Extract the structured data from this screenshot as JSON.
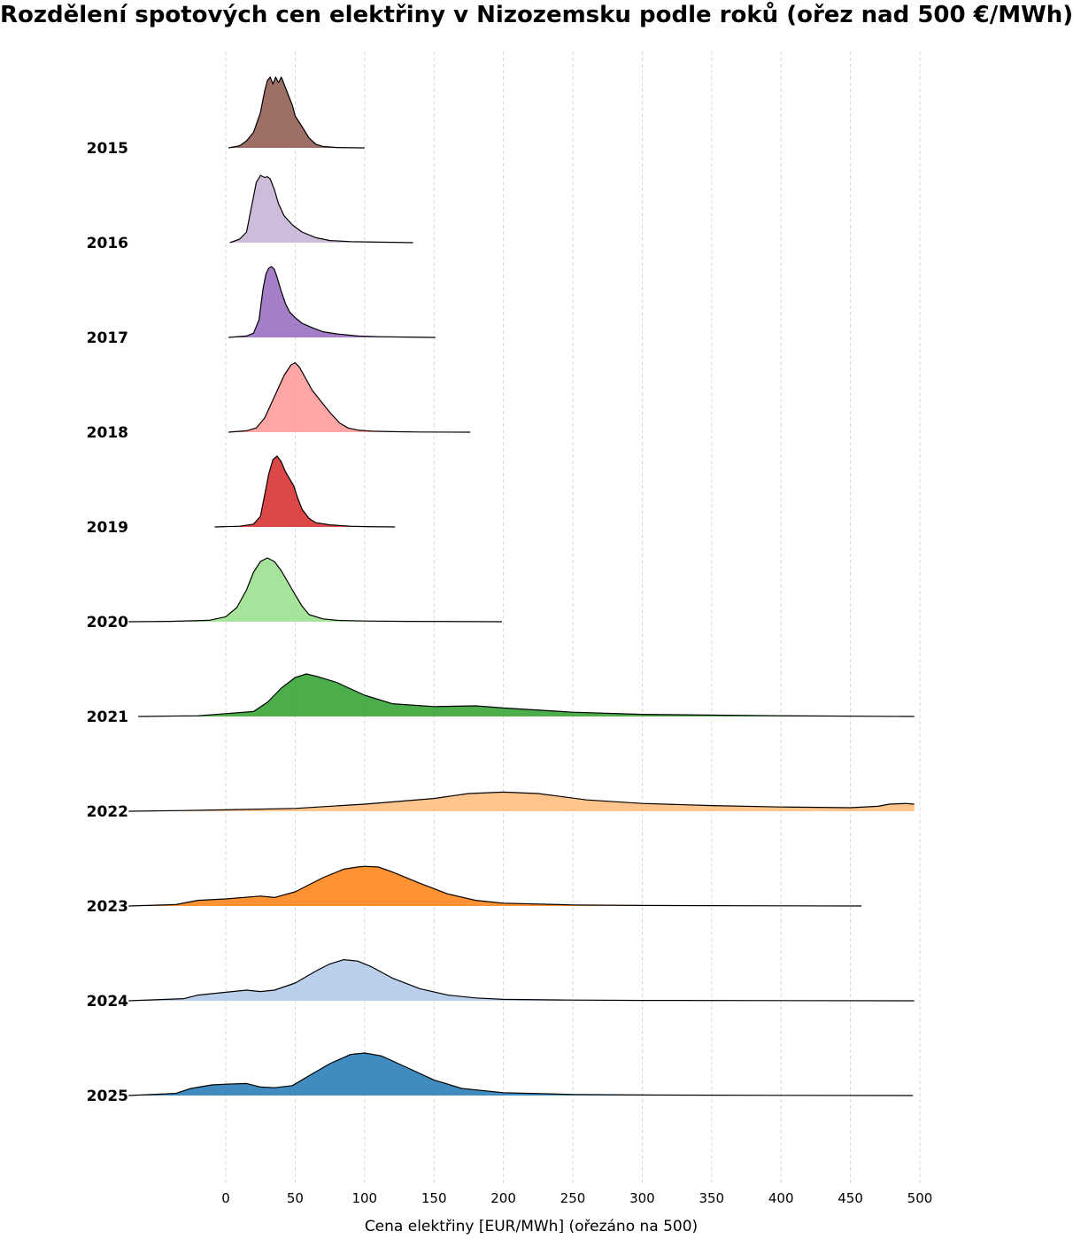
{
  "title": "Rozdělení spotových cen elektřiny v Nizozemsku podle roků (ořez nad 500 €/MWh)",
  "chart_data": {
    "type": "ridgeline",
    "title": "Rozdělení spotových cen elektřiny v Nizozemsku podle roků (ořez nad 500 €/MWh)",
    "xlabel": "Cena elektřiny [EUR/MWh] (ořezáno na 500)",
    "ylabel": "",
    "x_ticks": [
      "0",
      "50",
      "100",
      "150",
      "200",
      "250",
      "300",
      "350",
      "400",
      "450",
      "500"
    ],
    "x_tick_values": [
      0,
      50,
      100,
      150,
      200,
      250,
      300,
      350,
      400,
      450,
      500
    ],
    "xlim": [
      -70,
      500
    ],
    "grid": "vertical dashed",
    "legend": "none",
    "series": [
      {
        "name": "2015",
        "color": "#8c564b",
        "x": [
          2,
          10,
          15,
          20,
          25,
          28,
          30,
          32,
          34,
          36,
          38,
          40,
          42,
          44,
          46,
          48,
          50,
          55,
          60,
          65,
          70,
          80,
          100
        ],
        "y": [
          0,
          0.03,
          0.1,
          0.22,
          0.5,
          0.8,
          0.95,
          1.0,
          0.9,
          1.0,
          0.92,
          1.0,
          0.9,
          0.8,
          0.7,
          0.6,
          0.45,
          0.3,
          0.14,
          0.05,
          0.02,
          0.005,
          0
        ]
      },
      {
        "name": "2016",
        "color": "#c5b0d5",
        "x": [
          3,
          10,
          15,
          18,
          22,
          25,
          28,
          30,
          32,
          35,
          38,
          42,
          48,
          55,
          65,
          75,
          90,
          110,
          135
        ],
        "y": [
          0,
          0.05,
          0.15,
          0.45,
          0.85,
          0.95,
          0.92,
          0.93,
          0.9,
          0.75,
          0.55,
          0.38,
          0.25,
          0.15,
          0.07,
          0.03,
          0.015,
          0.008,
          0
        ]
      },
      {
        "name": "2017",
        "color": "#9467bd",
        "x": [
          2,
          15,
          20,
          24,
          27,
          29,
          31,
          33,
          35,
          37,
          40,
          43,
          46,
          50,
          55,
          62,
          70,
          80,
          95,
          110,
          130,
          151
        ],
        "y": [
          0,
          0.02,
          0.06,
          0.25,
          0.7,
          0.9,
          0.98,
          1.0,
          0.96,
          0.85,
          0.65,
          0.48,
          0.36,
          0.28,
          0.2,
          0.14,
          0.08,
          0.05,
          0.02,
          0.01,
          0.005,
          0
        ]
      },
      {
        "name": "2018",
        "color": "#ff9896",
        "x": [
          2,
          15,
          22,
          28,
          35,
          42,
          47,
          50,
          53,
          57,
          62,
          68,
          75,
          82,
          88,
          95,
          105,
          120,
          140,
          176
        ],
        "y": [
          0,
          0.02,
          0.06,
          0.2,
          0.5,
          0.8,
          0.95,
          0.98,
          0.92,
          0.78,
          0.6,
          0.45,
          0.28,
          0.13,
          0.06,
          0.03,
          0.015,
          0.008,
          0.003,
          0
        ]
      },
      {
        "name": "2019",
        "color": "#d62728",
        "x": [
          -8,
          10,
          20,
          25,
          28,
          31,
          34,
          37,
          40,
          43,
          46,
          49,
          52,
          55,
          60,
          65,
          75,
          90,
          100,
          122
        ],
        "y": [
          0,
          0.01,
          0.04,
          0.15,
          0.45,
          0.75,
          0.95,
          1.0,
          0.92,
          0.78,
          0.68,
          0.58,
          0.4,
          0.25,
          0.12,
          0.06,
          0.03,
          0.01,
          0.005,
          0
        ]
      },
      {
        "name": "2020",
        "color": "#98df8a",
        "x": [
          -70,
          -40,
          -12,
          0,
          8,
          15,
          20,
          25,
          30,
          35,
          40,
          45,
          50,
          55,
          60,
          70,
          80,
          100,
          130,
          199
        ],
        "y": [
          0,
          0.005,
          0.02,
          0.07,
          0.2,
          0.45,
          0.7,
          0.85,
          0.9,
          0.85,
          0.72,
          0.55,
          0.38,
          0.22,
          0.1,
          0.04,
          0.02,
          0.01,
          0.005,
          0
        ]
      },
      {
        "name": "2021",
        "color": "#2ca02c",
        "x": [
          -63,
          -20,
          0,
          20,
          30,
          40,
          50,
          58,
          65,
          80,
          100,
          120,
          150,
          180,
          200,
          250,
          300,
          400,
          496
        ],
        "y": [
          0,
          0.01,
          0.04,
          0.07,
          0.2,
          0.4,
          0.55,
          0.6,
          0.57,
          0.48,
          0.3,
          0.18,
          0.14,
          0.15,
          0.12,
          0.06,
          0.03,
          0.01,
          0
        ]
      },
      {
        "name": "2022",
        "color": "#ffbb78",
        "x": [
          -70,
          -30,
          0,
          50,
          100,
          150,
          175,
          200,
          225,
          260,
          300,
          350,
          400,
          450,
          470,
          478,
          490,
          496
        ],
        "y": [
          0,
          0.01,
          0.02,
          0.04,
          0.1,
          0.18,
          0.25,
          0.27,
          0.25,
          0.16,
          0.11,
          0.08,
          0.06,
          0.05,
          0.07,
          0.1,
          0.11,
          0.1
        ]
      },
      {
        "name": "2023",
        "color": "#ff7f0e",
        "x": [
          -70,
          -36,
          -20,
          0,
          25,
          35,
          50,
          70,
          85,
          95,
          100,
          110,
          120,
          140,
          160,
          180,
          200,
          250,
          300,
          400,
          458
        ],
        "y": [
          0,
          0.02,
          0.08,
          0.1,
          0.14,
          0.12,
          0.2,
          0.4,
          0.52,
          0.55,
          0.56,
          0.55,
          0.48,
          0.32,
          0.17,
          0.08,
          0.04,
          0.015,
          0.008,
          0.003,
          0
        ]
      },
      {
        "name": "2024",
        "color": "#aec7e8",
        "x": [
          -70,
          -30,
          -20,
          0,
          15,
          25,
          35,
          50,
          65,
          75,
          85,
          95,
          105,
          120,
          140,
          160,
          180,
          200,
          250,
          300,
          400,
          496
        ],
        "y": [
          0,
          0.03,
          0.08,
          0.12,
          0.15,
          0.13,
          0.15,
          0.25,
          0.42,
          0.52,
          0.58,
          0.56,
          0.48,
          0.32,
          0.17,
          0.08,
          0.04,
          0.02,
          0.01,
          0.005,
          0.002,
          0
        ]
      },
      {
        "name": "2025",
        "color": "#1f77b4",
        "x": [
          -70,
          -36,
          -25,
          -10,
          0,
          15,
          25,
          35,
          48,
          60,
          75,
          90,
          100,
          112,
          130,
          150,
          170,
          200,
          250,
          300,
          400,
          495
        ],
        "y": [
          0,
          0.03,
          0.1,
          0.15,
          0.16,
          0.17,
          0.12,
          0.11,
          0.14,
          0.28,
          0.45,
          0.58,
          0.6,
          0.56,
          0.4,
          0.22,
          0.1,
          0.04,
          0.015,
          0.008,
          0.003,
          0
        ]
      }
    ]
  }
}
